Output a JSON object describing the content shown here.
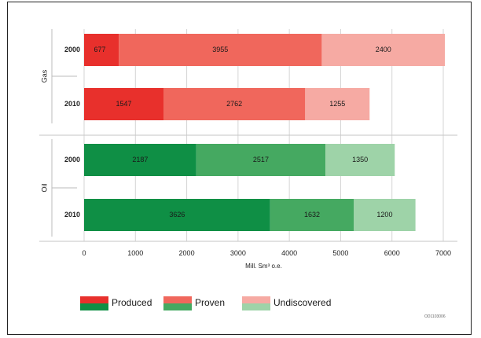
{
  "chart_data": {
    "type": "bar",
    "orientation": "horizontal",
    "stacked": true,
    "xlabel": "Mill. Sm³ o.e.",
    "xlim": [
      0,
      7000
    ],
    "xticks": [
      0,
      1000,
      2000,
      3000,
      4000,
      5000,
      6000,
      7000
    ],
    "grid": true,
    "legend_position": "bottom",
    "groups": [
      {
        "name": "Gas",
        "bars": [
          {
            "label": "2000",
            "values": [
              677,
              3955,
              2400
            ]
          },
          {
            "label": "2010",
            "values": [
              1547,
              2762,
              1255
            ]
          }
        ]
      },
      {
        "name": "Oil",
        "bars": [
          {
            "label": "2000",
            "values": [
              2187,
              2517,
              1350
            ]
          },
          {
            "label": "2010",
            "values": [
              3626,
              1632,
              1200
            ]
          }
        ]
      }
    ],
    "series": [
      {
        "name": "Produced",
        "colors": {
          "Gas": "#e8302c",
          "Oil": "#0f8f45"
        }
      },
      {
        "name": "Proven",
        "colors": {
          "Gas": "#f0675c",
          "Oil": "#45a961"
        }
      },
      {
        "name": "Undiscovered",
        "colors": {
          "Gas": "#f6aaa3",
          "Oil": "#9ed3a8"
        }
      }
    ]
  },
  "code_label": "OD1103006"
}
